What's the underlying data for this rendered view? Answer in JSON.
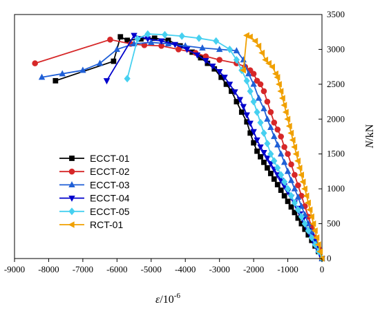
{
  "chart_data": {
    "type": "line",
    "title": "",
    "xlabel": {
      "symbol": "ε",
      "unit": "/10",
      "exp": "-6"
    },
    "ylabel": {
      "symbol": "N",
      "unit": "/kN"
    },
    "xlim": [
      -9000,
      0
    ],
    "ylim": [
      0,
      3500
    ],
    "xticks": [
      -9000,
      -8000,
      -7000,
      -6000,
      -5000,
      -4000,
      -3000,
      -2000,
      -1000,
      0
    ],
    "yticks": [
      0,
      500,
      1000,
      1500,
      2000,
      2500,
      3000,
      3500
    ],
    "grid": false,
    "legend_position": "bottom-left",
    "series": [
      {
        "name": "ECCT-01",
        "color": "#000000",
        "marker": "square",
        "points": [
          [
            0,
            0
          ],
          [
            -100,
            100
          ],
          [
            -200,
            180
          ],
          [
            -300,
            260
          ],
          [
            -400,
            340
          ],
          [
            -500,
            420
          ],
          [
            -600,
            500
          ],
          [
            -700,
            580
          ],
          [
            -800,
            660
          ],
          [
            -900,
            740
          ],
          [
            -1000,
            820
          ],
          [
            -1100,
            900
          ],
          [
            -1200,
            980
          ],
          [
            -1300,
            1060
          ],
          [
            -1400,
            1140
          ],
          [
            -1500,
            1220
          ],
          [
            -1600,
            1300
          ],
          [
            -1700,
            1380
          ],
          [
            -1800,
            1460
          ],
          [
            -1900,
            1540
          ],
          [
            -2000,
            1660
          ],
          [
            -2100,
            1800
          ],
          [
            -2200,
            1960
          ],
          [
            -2350,
            2100
          ],
          [
            -2500,
            2250
          ],
          [
            -2650,
            2400
          ],
          [
            -2800,
            2500
          ],
          [
            -2950,
            2600
          ],
          [
            -3150,
            2720
          ],
          [
            -3350,
            2800
          ],
          [
            -3550,
            2880
          ],
          [
            -3800,
            2960
          ],
          [
            -4150,
            3050
          ],
          [
            -4500,
            3130
          ],
          [
            -4900,
            3160
          ],
          [
            -5300,
            3150
          ],
          [
            -5700,
            3130
          ],
          [
            -5900,
            3180
          ],
          [
            -6100,
            2830
          ],
          [
            -7800,
            2550
          ]
        ]
      },
      {
        "name": "ECCT-02",
        "color": "#d62728",
        "marker": "circle",
        "points": [
          [
            0,
            0
          ],
          [
            -100,
            150
          ],
          [
            -200,
            300
          ],
          [
            -300,
            450
          ],
          [
            -400,
            600
          ],
          [
            -500,
            750
          ],
          [
            -600,
            900
          ],
          [
            -700,
            1050
          ],
          [
            -800,
            1200
          ],
          [
            -900,
            1350
          ],
          [
            -1000,
            1500
          ],
          [
            -1100,
            1600
          ],
          [
            -1200,
            1750
          ],
          [
            -1300,
            1850
          ],
          [
            -1400,
            1950
          ],
          [
            -1500,
            2100
          ],
          [
            -1600,
            2250
          ],
          [
            -1700,
            2400
          ],
          [
            -1800,
            2500
          ],
          [
            -1900,
            2550
          ],
          [
            -2000,
            2650
          ],
          [
            -2100,
            2700
          ],
          [
            -2250,
            2750
          ],
          [
            -2500,
            2800
          ],
          [
            -3000,
            2850
          ],
          [
            -3400,
            2900
          ],
          [
            -3700,
            2950
          ],
          [
            -4200,
            3000
          ],
          [
            -4700,
            3050
          ],
          [
            -5200,
            3060
          ],
          [
            -5600,
            3080
          ],
          [
            -6200,
            3140
          ],
          [
            -8400,
            2800
          ]
        ]
      },
      {
        "name": "ECCT-03",
        "color": "#1f5fd6",
        "marker": "triangle-up",
        "points": [
          [
            0,
            0
          ],
          [
            -100,
            120
          ],
          [
            -200,
            250
          ],
          [
            -300,
            380
          ],
          [
            -400,
            500
          ],
          [
            -500,
            630
          ],
          [
            -600,
            750
          ],
          [
            -700,
            880
          ],
          [
            -800,
            1000
          ],
          [
            -900,
            1120
          ],
          [
            -1000,
            1250
          ],
          [
            -1100,
            1380
          ],
          [
            -1200,
            1500
          ],
          [
            -1300,
            1630
          ],
          [
            -1400,
            1750
          ],
          [
            -1500,
            1880
          ],
          [
            -1600,
            2000
          ],
          [
            -1700,
            2150
          ],
          [
            -1850,
            2300
          ],
          [
            -2000,
            2500
          ],
          [
            -2150,
            2650
          ],
          [
            -2300,
            2850
          ],
          [
            -2500,
            2980
          ],
          [
            -3000,
            3000
          ],
          [
            -3500,
            3020
          ],
          [
            -4000,
            3050
          ],
          [
            -4500,
            3080
          ],
          [
            -5000,
            3100
          ],
          [
            -5500,
            3080
          ],
          [
            -6000,
            3000
          ],
          [
            -6500,
            2800
          ],
          [
            -7000,
            2700
          ],
          [
            -7600,
            2650
          ],
          [
            -8200,
            2600
          ]
        ]
      },
      {
        "name": "ECCT-04",
        "color": "#0000cc",
        "marker": "triangle-down",
        "points": [
          [
            0,
            0
          ],
          [
            -80,
            80
          ],
          [
            -160,
            160
          ],
          [
            -240,
            240
          ],
          [
            -320,
            320
          ],
          [
            -400,
            400
          ],
          [
            -480,
            480
          ],
          [
            -560,
            560
          ],
          [
            -640,
            640
          ],
          [
            -720,
            720
          ],
          [
            -800,
            800
          ],
          [
            -900,
            880
          ],
          [
            -1000,
            960
          ],
          [
            -1100,
            1040
          ],
          [
            -1200,
            1120
          ],
          [
            -1300,
            1200
          ],
          [
            -1400,
            1280
          ],
          [
            -1500,
            1360
          ],
          [
            -1600,
            1440
          ],
          [
            -1700,
            1520
          ],
          [
            -1800,
            1600
          ],
          [
            -1900,
            1700
          ],
          [
            -2000,
            1820
          ],
          [
            -2100,
            1940
          ],
          [
            -2200,
            2060
          ],
          [
            -2300,
            2180
          ],
          [
            -2400,
            2280
          ],
          [
            -2550,
            2390
          ],
          [
            -2700,
            2500
          ],
          [
            -2850,
            2600
          ],
          [
            -3000,
            2680
          ],
          [
            -3200,
            2760
          ],
          [
            -3400,
            2840
          ],
          [
            -3650,
            2920
          ],
          [
            -3950,
            3000
          ],
          [
            -4300,
            3070
          ],
          [
            -4700,
            3120
          ],
          [
            -5100,
            3150
          ],
          [
            -5500,
            3200
          ],
          [
            -6300,
            2550
          ]
        ]
      },
      {
        "name": "ECCT-05",
        "color": "#46d0f0",
        "marker": "diamond",
        "points": [
          [
            0,
            0
          ],
          [
            -100,
            100
          ],
          [
            -200,
            200
          ],
          [
            -300,
            300
          ],
          [
            -400,
            400
          ],
          [
            -500,
            500
          ],
          [
            -600,
            600
          ],
          [
            -700,
            700
          ],
          [
            -800,
            800
          ],
          [
            -900,
            900
          ],
          [
            -1000,
            1000
          ],
          [
            -1100,
            1100
          ],
          [
            -1200,
            1200
          ],
          [
            -1300,
            1300
          ],
          [
            -1400,
            1400
          ],
          [
            -1500,
            1500
          ],
          [
            -1600,
            1650
          ],
          [
            -1700,
            1800
          ],
          [
            -1800,
            1950
          ],
          [
            -1900,
            2100
          ],
          [
            -2000,
            2250
          ],
          [
            -2100,
            2400
          ],
          [
            -2200,
            2550
          ],
          [
            -2350,
            2700
          ],
          [
            -2500,
            2850
          ],
          [
            -2700,
            3000
          ],
          [
            -3100,
            3120
          ],
          [
            -3600,
            3160
          ],
          [
            -4100,
            3190
          ],
          [
            -4600,
            3210
          ],
          [
            -5100,
            3220
          ],
          [
            -5400,
            3150
          ],
          [
            -5700,
            2580
          ]
        ]
      },
      {
        "name": "RCT-01",
        "color": "#f0a000",
        "marker": "triangle-left",
        "points": [
          [
            0,
            0
          ],
          [
            -50,
            100
          ],
          [
            -100,
            200
          ],
          [
            -150,
            300
          ],
          [
            -200,
            400
          ],
          [
            -250,
            500
          ],
          [
            -300,
            600
          ],
          [
            -350,
            700
          ],
          [
            -400,
            800
          ],
          [
            -450,
            900
          ],
          [
            -500,
            1000
          ],
          [
            -550,
            1100
          ],
          [
            -600,
            1200
          ],
          [
            -650,
            1300
          ],
          [
            -700,
            1400
          ],
          [
            -750,
            1500
          ],
          [
            -800,
            1600
          ],
          [
            -850,
            1700
          ],
          [
            -900,
            1800
          ],
          [
            -950,
            1900
          ],
          [
            -1000,
            2000
          ],
          [
            -1050,
            2100
          ],
          [
            -1100,
            2200
          ],
          [
            -1150,
            2300
          ],
          [
            -1200,
            2400
          ],
          [
            -1250,
            2500
          ],
          [
            -1300,
            2600
          ],
          [
            -1350,
            2650
          ],
          [
            -1450,
            2750
          ],
          [
            -1550,
            2800
          ],
          [
            -1650,
            2850
          ],
          [
            -1750,
            2950
          ],
          [
            -1850,
            3050
          ],
          [
            -1950,
            3120
          ],
          [
            -2100,
            3180
          ],
          [
            -2200,
            3200
          ],
          [
            -2300,
            2700
          ]
        ]
      }
    ]
  }
}
